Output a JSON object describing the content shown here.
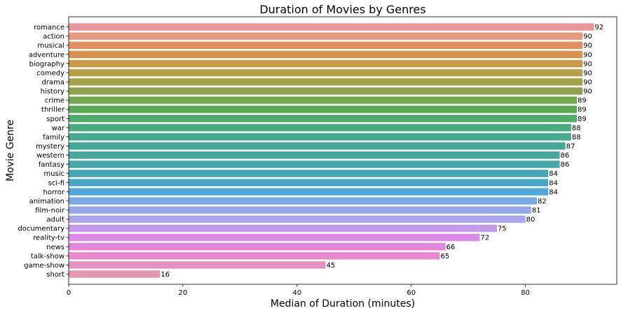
{
  "chart_data": {
    "type": "bar",
    "orientation": "horizontal",
    "title": "Duration of Movies by Genres",
    "xlabel": "Median of Duration (minutes)",
    "ylabel": "Movie Genre",
    "xlim": [
      0,
      96
    ],
    "xticks": [
      0,
      20,
      40,
      60,
      80
    ],
    "grid": false,
    "categories": [
      "romance",
      "action",
      "musical",
      "adventure",
      "biography",
      "comedy",
      "drama",
      "history",
      "crime",
      "thriller",
      "sport",
      "war",
      "family",
      "mystery",
      "western",
      "fantasy",
      "music",
      "sci-fi",
      "horror",
      "animation",
      "film-noir",
      "adult",
      "documentary",
      "reality-tv",
      "news",
      "talk-show",
      "game-show",
      "short"
    ],
    "values": [
      92,
      90,
      90,
      90,
      90,
      90,
      90,
      90,
      89,
      89,
      89,
      88,
      88,
      87,
      86,
      86,
      84,
      84,
      84,
      82,
      81,
      80,
      75,
      72,
      66,
      65,
      45,
      16
    ],
    "colors": [
      "#e9969b",
      "#e8987e",
      "#e0925e",
      "#d7904d",
      "#c9984a",
      "#b7a048",
      "#a3a24a",
      "#90a24b",
      "#72a84e",
      "#5aa955",
      "#4eab6a",
      "#49ab80",
      "#46aa8d",
      "#45a997",
      "#46a8a1",
      "#47a7aa",
      "#47a6b5",
      "#48a6c7",
      "#50a8d9",
      "#79aae6",
      "#96a6eb",
      "#ada5eb",
      "#c59aec",
      "#dc8ae8",
      "#e486dc",
      "#e78ace",
      "#e591c1",
      "#e697b0"
    ]
  }
}
